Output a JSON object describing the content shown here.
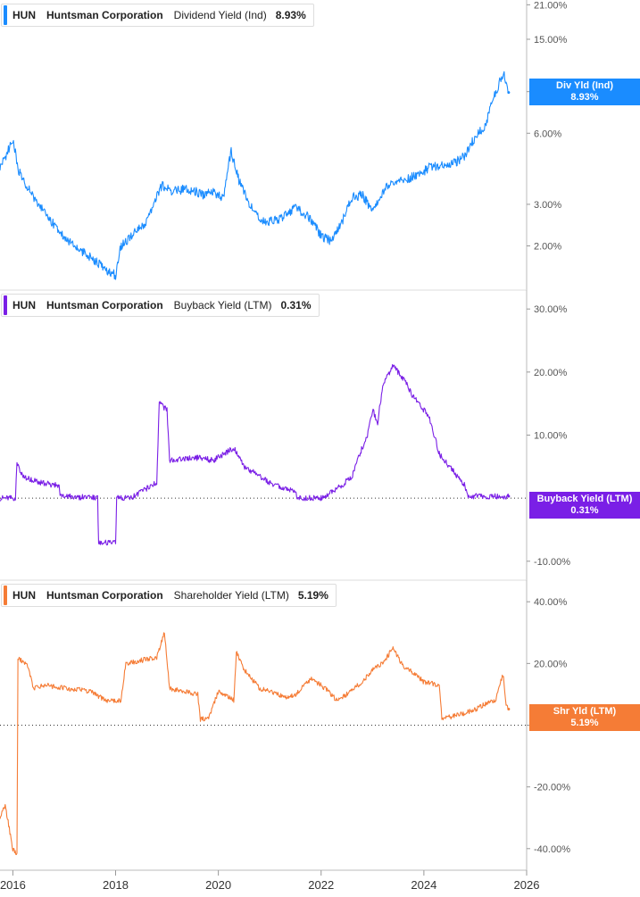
{
  "colors": {
    "div": "#1a8cff",
    "buyback": "#7a1fe6",
    "shareholder": "#f57c36"
  },
  "legends": [
    {
      "ticker": "HUN",
      "name": "Huntsman Corporation",
      "metric": "Dividend Yield (Ind)",
      "value": "8.93%"
    },
    {
      "ticker": "HUN",
      "name": "Huntsman Corporation",
      "metric": "Buyback Yield (LTM)",
      "value": "0.31%"
    },
    {
      "ticker": "HUN",
      "name": "Huntsman Corporation",
      "metric": "Shareholder Yield (LTM)",
      "value": "5.19%"
    }
  ],
  "badges": [
    {
      "label": "Div Yld (Ind)",
      "value": "8.93%"
    },
    {
      "label": "Buyback Yield (LTM)",
      "value": "0.31%"
    },
    {
      "label": "Shr Yld (LTM)",
      "value": "5.19%"
    }
  ],
  "chart_data": [
    {
      "type": "line",
      "series": [
        {
          "name": "Dividend Yield (Ind)",
          "x": [
            2015.75,
            2015.9,
            2016.0,
            2016.1,
            2016.2,
            2016.4,
            2016.6,
            2016.9,
            2017.2,
            2017.5,
            2017.8,
            2018.0,
            2018.1,
            2018.3,
            2018.6,
            2018.9,
            2019.1,
            2019.4,
            2019.7,
            2019.9,
            2020.1,
            2020.25,
            2020.4,
            2020.6,
            2020.9,
            2021.2,
            2021.5,
            2021.8,
            2022.0,
            2022.2,
            2022.4,
            2022.6,
            2022.8,
            2023.0,
            2023.3,
            2023.6,
            2023.9,
            2024.1,
            2024.4,
            2024.6,
            2024.8,
            2025.0,
            2025.2,
            2025.4,
            2025.5,
            2025.55,
            2025.6,
            2025.65
          ],
          "y": [
            4.3,
            5.0,
            5.7,
            4.2,
            3.8,
            3.2,
            2.8,
            2.3,
            2.0,
            1.8,
            1.6,
            1.5,
            2.0,
            2.2,
            2.5,
            3.6,
            3.4,
            3.5,
            3.3,
            3.4,
            3.2,
            5.0,
            3.8,
            3.0,
            2.5,
            2.6,
            2.9,
            2.6,
            2.2,
            2.1,
            2.5,
            3.2,
            3.3,
            2.8,
            3.6,
            3.8,
            4.0,
            4.3,
            4.4,
            4.5,
            4.8,
            5.8,
            6.5,
            9.0,
            10.2,
            11.0,
            9.5,
            8.93
          ]
        }
      ],
      "ylim": [
        1.3,
        22
      ],
      "yscale": "log",
      "yticks": [
        "21.00%",
        "15.00%",
        "9.00%",
        "6.00%",
        "3.00%",
        "2.00%"
      ],
      "ytick_values": [
        21,
        15,
        9,
        6,
        3,
        2
      ]
    },
    {
      "type": "line",
      "series": [
        {
          "name": "Buyback Yield (LTM)",
          "x": [
            2015.75,
            2016.05,
            2016.08,
            2016.2,
            2016.5,
            2016.9,
            2016.92,
            2017.5,
            2017.65,
            2017.67,
            2018.0,
            2018.02,
            2018.3,
            2018.7,
            2018.8,
            2018.85,
            2019.0,
            2019.05,
            2019.5,
            2019.9,
            2020.3,
            2020.5,
            2020.8,
            2021.1,
            2021.5,
            2021.55,
            2022.0,
            2022.2,
            2022.4,
            2022.6,
            2022.8,
            2022.9,
            2023.0,
            2023.1,
            2023.2,
            2023.4,
            2023.6,
            2023.8,
            2024.1,
            2024.3,
            2024.6,
            2024.8,
            2024.85,
            2025.3,
            2025.65
          ],
          "y": [
            0,
            0,
            5.5,
            3.5,
            2.5,
            2.0,
            0.3,
            0.1,
            0.1,
            -7.0,
            -7.0,
            0.0,
            0.0,
            2.0,
            2.5,
            15.0,
            14.0,
            6.0,
            6.5,
            6.0,
            8.0,
            5.0,
            3.5,
            2.0,
            1.0,
            0.0,
            0.0,
            1.0,
            2.0,
            3.5,
            8.0,
            10.0,
            14.0,
            12.0,
            18.0,
            21.0,
            19.0,
            16.0,
            13.0,
            7.0,
            4.0,
            2.0,
            0.3,
            0.3,
            0.31
          ]
        }
      ],
      "ylim": [
        -13,
        33
      ],
      "yticks": [
        "30.00%",
        "20.00%",
        "10.00%",
        "-10.00%"
      ],
      "ytick_values": [
        30,
        20,
        10,
        -10
      ]
    },
    {
      "type": "line",
      "series": [
        {
          "name": "Shareholder Yield (LTM)",
          "x": [
            2015.75,
            2015.85,
            2016.0,
            2016.08,
            2016.1,
            2016.3,
            2016.4,
            2016.6,
            2017.0,
            2017.5,
            2017.8,
            2018.1,
            2018.2,
            2018.5,
            2018.8,
            2018.95,
            2019.05,
            2019.3,
            2019.6,
            2019.65,
            2019.8,
            2020.0,
            2020.3,
            2020.35,
            2020.5,
            2020.8,
            2021.0,
            2021.3,
            2021.5,
            2021.8,
            2022.0,
            2022.2,
            2022.3,
            2022.5,
            2022.8,
            2023.0,
            2023.2,
            2023.4,
            2023.6,
            2023.8,
            2024.0,
            2024.3,
            2024.35,
            2024.8,
            2025.0,
            2025.2,
            2025.4,
            2025.5,
            2025.55,
            2025.6,
            2025.65
          ],
          "y": [
            -30,
            -26,
            -40,
            -42,
            22,
            19,
            12,
            13,
            12,
            11,
            8,
            8,
            20,
            21,
            22,
            30,
            12,
            11,
            10,
            2,
            2,
            11,
            8,
            24,
            18,
            12,
            11,
            9,
            10,
            15,
            13,
            10,
            8,
            10,
            14,
            18,
            20,
            25,
            19,
            17,
            14,
            13,
            2,
            4,
            5,
            7,
            8,
            15,
            16,
            6,
            5.19
          ]
        }
      ],
      "ylim": [
        -47,
        47
      ],
      "yticks": [
        "40.00%",
        "20.00%",
        "0.00%",
        "-20.00%",
        "-40.00%"
      ],
      "ytick_values": [
        40,
        20,
        0,
        -20,
        -40
      ]
    }
  ],
  "x_axis": {
    "range": [
      2015.75,
      2026.0
    ],
    "ticks": [
      "2016",
      "2018",
      "2020",
      "2022",
      "2024",
      "2026"
    ],
    "tick_values": [
      2016,
      2018,
      2020,
      2022,
      2024,
      2026
    ]
  }
}
